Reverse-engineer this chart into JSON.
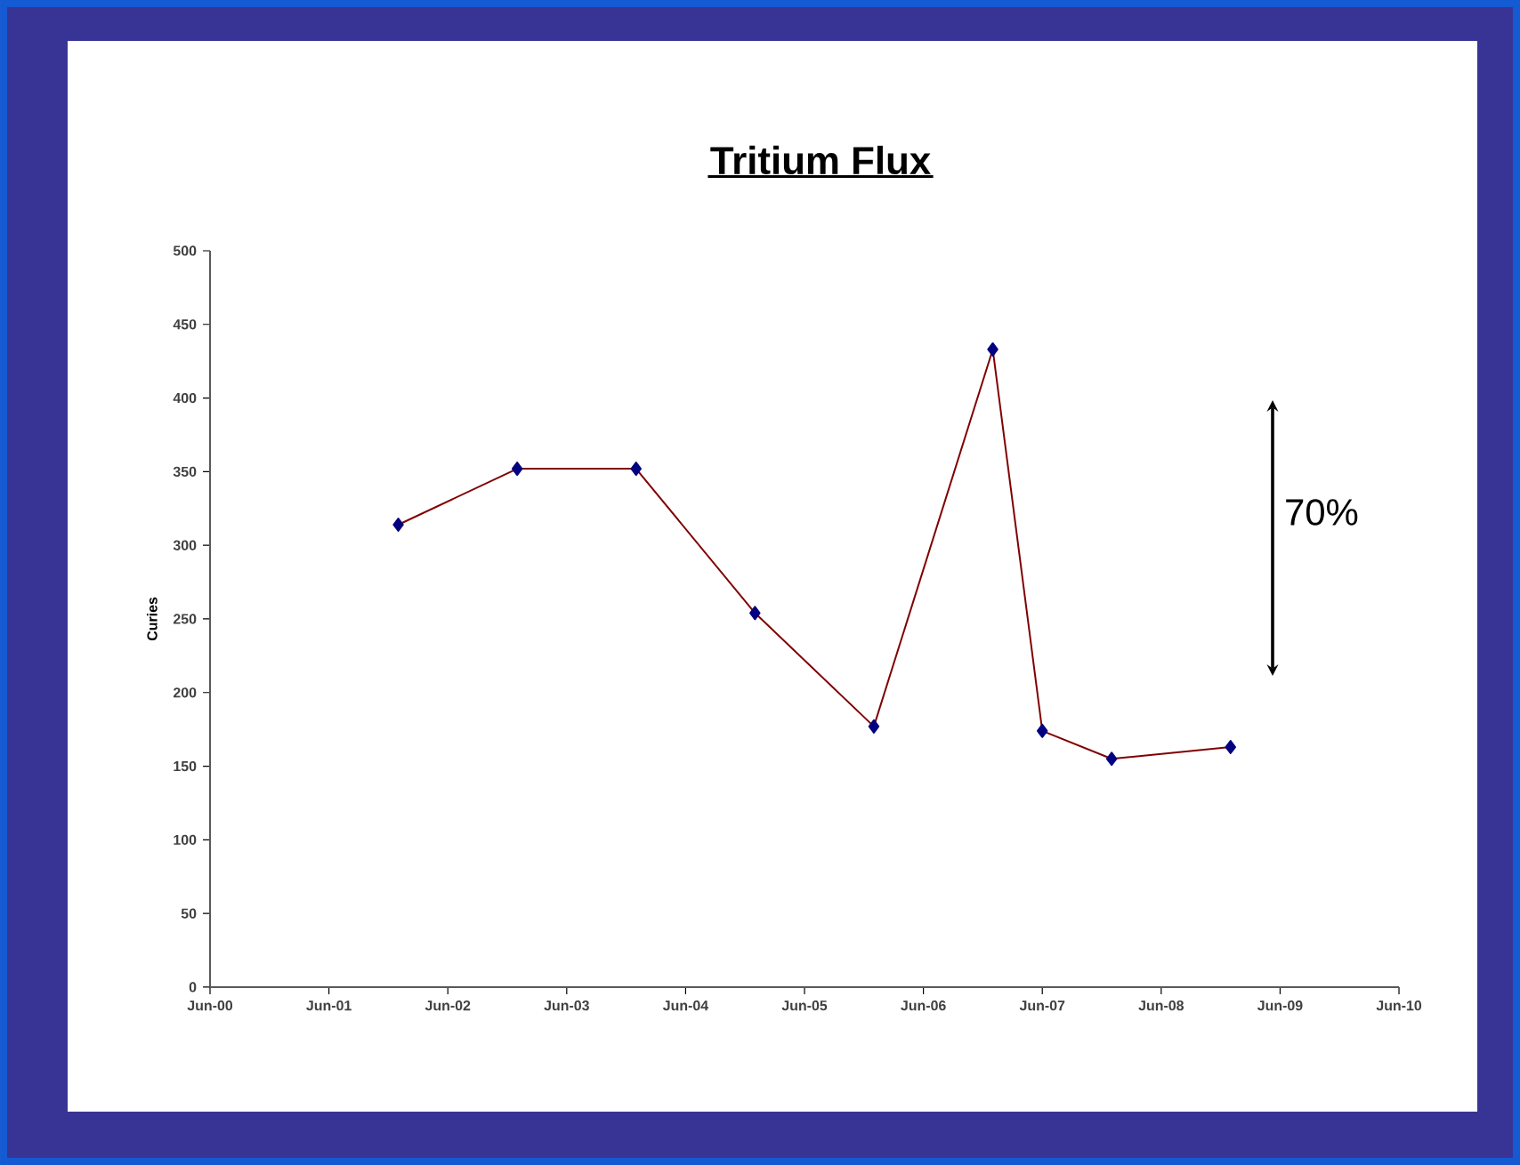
{
  "chart_data": {
    "type": "line",
    "title": "Tritium Flux",
    "ylabel": "Curies",
    "x": [
      "2002-01",
      "2003-01",
      "2004-01",
      "2005-01",
      "2006-01",
      "2007-01",
      "2007-06",
      "2008-01",
      "2009-01"
    ],
    "series": [
      {
        "color": "#800000",
        "values": [
          314,
          352,
          352,
          254,
          177,
          433,
          174,
          155,
          163
        ]
      }
    ],
    "marker": "diamond",
    "xlim": [
      "2000-06",
      "2010-06"
    ],
    "xticks": [
      {
        "value": "2000-06",
        "label": "Jun-00"
      },
      {
        "value": "2001-06",
        "label": "Jun-01"
      },
      {
        "value": "2002-06",
        "label": "Jun-02"
      },
      {
        "value": "2003-06",
        "label": "Jun-03"
      },
      {
        "value": "2004-06",
        "label": "Jun-04"
      },
      {
        "value": "2005-06",
        "label": "Jun-05"
      },
      {
        "value": "2006-06",
        "label": "Jun-06"
      },
      {
        "value": "2007-06",
        "label": "Jun-07"
      },
      {
        "value": "2008-06",
        "label": "Jun-08"
      },
      {
        "value": "2009-06",
        "label": "Jun-09"
      },
      {
        "value": "2010-06",
        "label": "Jun-10"
      }
    ],
    "ylim": [
      0,
      500
    ],
    "yticks": [
      0,
      50,
      100,
      150,
      200,
      250,
      300,
      350,
      400,
      450,
      500
    ],
    "annotations": [
      "70%"
    ]
  }
}
